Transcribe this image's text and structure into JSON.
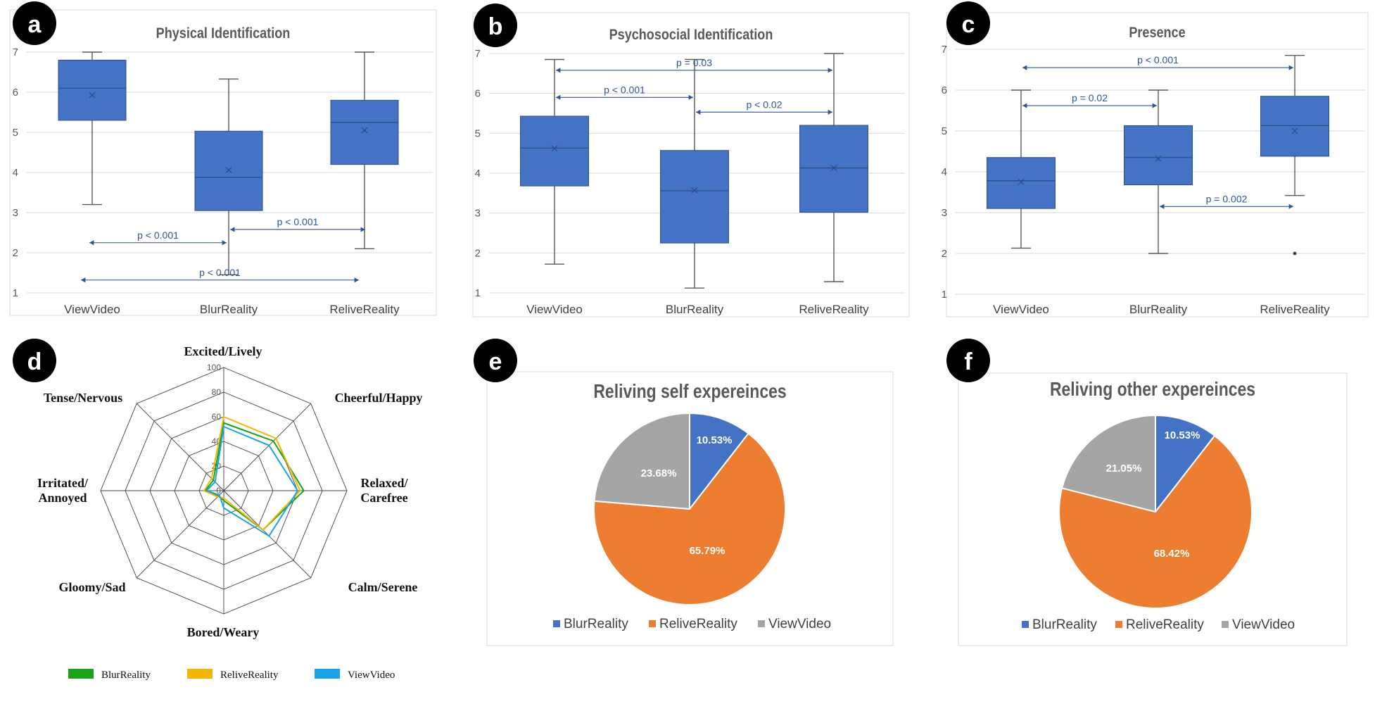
{
  "colors": {
    "box_fill": "#4472C4",
    "box_edge": "#2F4F8F",
    "whisker": "#595959",
    "pval": "#2F5597",
    "grid": "#D9D9D9",
    "panel_border": "#D9D9D9",
    "radar_grid": "#404040",
    "badge": "#000000"
  },
  "chart_data": [
    {
      "panel": "a",
      "type": "box",
      "title": "Physical Identification",
      "categories": [
        "ViewVideo",
        "BlurReality",
        "ReliveReality"
      ],
      "ylim": [
        1,
        7
      ],
      "yticks": [
        "1",
        "2",
        "3",
        "4",
        "5",
        "6",
        "7"
      ],
      "grid": true,
      "boxes": [
        {
          "min": 3.2,
          "q1": 5.3,
          "median": 6.1,
          "q3": 6.8,
          "max": 7.0,
          "mean": 5.93,
          "outliers": []
        },
        {
          "min": 1.45,
          "q1": 3.05,
          "median": 3.88,
          "q3": 5.03,
          "max": 6.33,
          "mean": 4.06,
          "outliers": []
        },
        {
          "min": 2.1,
          "q1": 4.2,
          "median": 5.25,
          "q3": 5.8,
          "max": 7.0,
          "mean": 5.05,
          "outliers": []
        }
      ],
      "comparisons": [
        {
          "label": "p < 0.001",
          "from": 0,
          "to": 1,
          "y": 2.25
        },
        {
          "label": "p < 0.001",
          "from": 1,
          "to": 2,
          "y": 2.58
        },
        {
          "label": "p < 0.001",
          "from": 0,
          "to": 2,
          "y": 1.32
        }
      ]
    },
    {
      "panel": "b",
      "type": "box",
      "title": "Psychosocial Identification",
      "categories": [
        "ViewVideo",
        "BlurReality",
        "ReliveReality"
      ],
      "ylim": [
        1,
        7
      ],
      "yticks": [
        "1",
        "2",
        "3",
        "4",
        "5",
        "6",
        "7"
      ],
      "grid": true,
      "boxes": [
        {
          "min": 1.72,
          "q1": 3.68,
          "median": 4.63,
          "q3": 5.43,
          "max": 6.85,
          "mean": 4.62,
          "outliers": []
        },
        {
          "min": 1.12,
          "q1": 2.25,
          "median": 3.56,
          "q3": 4.57,
          "max": 6.85,
          "mean": 3.57,
          "outliers": []
        },
        {
          "min": 1.28,
          "q1": 3.02,
          "median": 4.13,
          "q3": 5.2,
          "max": 7.0,
          "mean": 4.13,
          "outliers": []
        }
      ],
      "comparisons": [
        {
          "label": "p = 0.03",
          "from": 0,
          "to": 2,
          "y": 6.58
        },
        {
          "label": "p < 0.001",
          "from": 0,
          "to": 1,
          "y": 5.9
        },
        {
          "label": "p < 0.02",
          "from": 1,
          "to": 2,
          "y": 5.53
        }
      ]
    },
    {
      "panel": "c",
      "type": "box",
      "title": "Presence",
      "categories": [
        "ViewVideo",
        "BlurReality",
        "ReliveReality"
      ],
      "ylim": [
        1,
        7
      ],
      "yticks": [
        "1",
        "2",
        "3",
        "4",
        "5",
        "6",
        "7"
      ],
      "grid": true,
      "boxes": [
        {
          "min": 2.13,
          "q1": 3.1,
          "median": 3.78,
          "q3": 4.35,
          "max": 6.0,
          "mean": 3.75,
          "outliers": []
        },
        {
          "min": 2.0,
          "q1": 3.68,
          "median": 4.35,
          "q3": 5.13,
          "max": 6.0,
          "mean": 4.32,
          "outliers": []
        },
        {
          "min": 3.42,
          "q1": 4.38,
          "median": 5.13,
          "q3": 5.85,
          "max": 6.85,
          "mean": 5.0,
          "outliers": [
            2.0
          ]
        }
      ],
      "comparisons": [
        {
          "label": "p < 0.001",
          "from": 0,
          "to": 2,
          "y": 6.55
        },
        {
          "label": "p = 0.02",
          "from": 0,
          "to": 1,
          "y": 5.62
        },
        {
          "label": "p = 0.002",
          "from": 1,
          "to": 2,
          "y": 3.15
        }
      ]
    },
    {
      "panel": "d",
      "type": "radar",
      "axes": [
        "Excited/Lively",
        "Cheerful/Happy",
        "Relaxed/ Carefree",
        "Calm/Serene",
        "Bored/Weary",
        "Gloomy/Sad",
        "Irritated/ Annoyed",
        "Tense/Nervous"
      ],
      "axis_label_lines": [
        [
          "Excited/Lively"
        ],
        [
          "Cheerful/Happy"
        ],
        [
          "Relaxed/",
          "Carefree"
        ],
        [
          "Calm/Serene"
        ],
        [
          "Bored/Weary"
        ],
        [
          "Gloomy/Sad"
        ],
        [
          "Irritated/",
          "Annoyed"
        ],
        [
          "Tense/Nervous"
        ]
      ],
      "rlim": [
        0,
        100
      ],
      "rticks": [
        "0",
        "20",
        "40",
        "60",
        "80",
        "100"
      ],
      "series": [
        {
          "name": "BlurReality",
          "color": "#19A319",
          "values": [
            55,
            57,
            65,
            45,
            8,
            6,
            15,
            12
          ]
        },
        {
          "name": "ReliveReality",
          "color": "#F2B705",
          "values": [
            60,
            60,
            62,
            45,
            6,
            7,
            16,
            14
          ]
        },
        {
          "name": "ViewVideo",
          "color": "#1AA3E8",
          "values": [
            52,
            52,
            60,
            52,
            14,
            5,
            14,
            10
          ]
        }
      ]
    },
    {
      "panel": "e",
      "type": "pie",
      "title": "Reliving self expereinces",
      "slices": [
        {
          "label": "BlurReality",
          "value": 10.53,
          "text": "10.53%",
          "color": "#4472C4"
        },
        {
          "label": "ReliveReality",
          "value": 65.79,
          "text": "65.79%",
          "color": "#ED7D31"
        },
        {
          "label": "ViewVideo",
          "value": 23.68,
          "text": "23.68%",
          "color": "#A5A5A5"
        }
      ],
      "legend": "bottom"
    },
    {
      "panel": "f",
      "type": "pie",
      "title": "Reliving other expereinces",
      "slices": [
        {
          "label": "BlurReality",
          "value": 10.53,
          "text": "10.53%",
          "color": "#4472C4"
        },
        {
          "label": "ReliveReality",
          "value": 68.42,
          "text": "68.42%",
          "color": "#ED7D31"
        },
        {
          "label": "ViewVideo",
          "value": 21.05,
          "text": "21.05%",
          "color": "#A5A5A5"
        }
      ],
      "legend": "bottom"
    }
  ]
}
